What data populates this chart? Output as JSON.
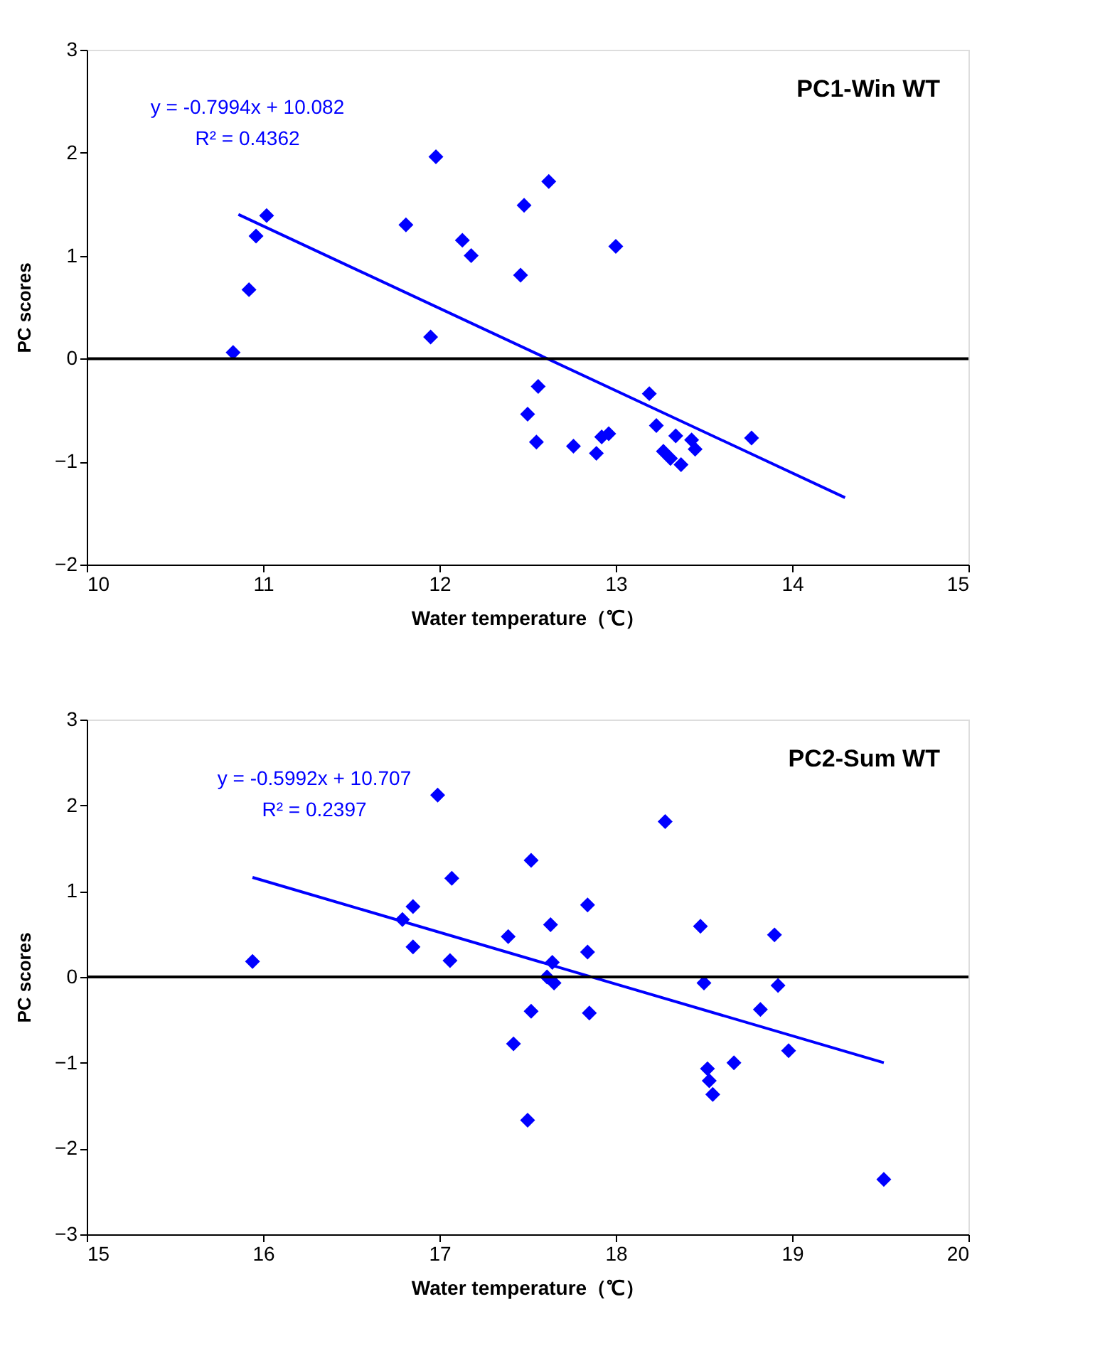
{
  "chart_data": [
    {
      "type": "scatter",
      "title": "PC1-Win WT",
      "xlabel": "Water temperature（℃）",
      "ylabel": "PC scores",
      "xlim": [
        10,
        15
      ],
      "xticks": [
        10,
        11,
        12,
        13,
        14,
        15
      ],
      "ylim": [
        -2,
        3
      ],
      "yticks": [
        -2,
        -1,
        0,
        1,
        2,
        3
      ],
      "grid": false,
      "annotations": [
        "y = -0.7994x + 10.082",
        "R² = 0.4362"
      ],
      "ref_lines": [
        {
          "axis": "y",
          "value": 0,
          "color": "#000000"
        }
      ],
      "series": [
        {
          "color": "#0000ff",
          "marker": "diamond",
          "x": [
            10.83,
            10.92,
            10.96,
            11.02,
            11.81,
            11.98,
            11.95,
            12.13,
            12.18,
            12.46,
            12.48,
            12.62,
            13.0,
            12.56,
            12.5,
            12.55,
            12.76,
            12.89,
            12.92,
            12.96,
            13.19,
            13.23,
            13.27,
            13.31,
            13.34,
            13.37,
            13.43,
            13.45,
            13.77
          ],
          "values": [
            0.06,
            0.67,
            1.19,
            1.39,
            1.3,
            1.96,
            0.21,
            1.15,
            1.0,
            0.81,
            1.49,
            1.72,
            1.09,
            -0.27,
            -0.54,
            -0.81,
            -0.85,
            -0.92,
            -0.76,
            -0.73,
            -0.34,
            -0.65,
            -0.9,
            -0.97,
            -0.75,
            -1.03,
            -0.79,
            -0.88,
            -0.77
          ]
        },
        {
          "type": "line",
          "color": "#0000ff",
          "marker": "none",
          "line_style": "solid",
          "x": [
            10.86,
            14.3
          ],
          "values": [
            1.4,
            -1.35
          ]
        }
      ]
    },
    {
      "type": "scatter",
      "title": "PC2-Sum WT",
      "xlabel": "Water temperature（℃）",
      "ylabel": "PC scores",
      "xlim": [
        15,
        20
      ],
      "xticks": [
        15,
        16,
        17,
        18,
        19,
        20
      ],
      "ylim": [
        -3,
        3
      ],
      "yticks": [
        -3,
        -2,
        -1,
        0,
        1,
        2,
        3
      ],
      "grid": false,
      "annotations": [
        "y = -0.5992x + 10.707",
        "R² = 0.2397"
      ],
      "ref_lines": [
        {
          "axis": "y",
          "value": 0,
          "color": "#000000"
        }
      ],
      "series": [
        {
          "color": "#0000ff",
          "marker": "diamond",
          "x": [
            15.94,
            16.79,
            16.85,
            16.85,
            16.99,
            17.07,
            17.06,
            17.39,
            17.42,
            17.52,
            17.52,
            17.5,
            17.63,
            17.64,
            17.61,
            17.65,
            17.84,
            17.84,
            17.85,
            18.28,
            18.48,
            18.5,
            18.52,
            18.53,
            18.55,
            18.67,
            18.82,
            18.9,
            18.92,
            18.98,
            19.52
          ],
          "values": [
            0.18,
            0.67,
            0.82,
            0.35,
            2.12,
            1.15,
            0.19,
            0.47,
            -0.78,
            1.36,
            -0.4,
            -1.67,
            0.61,
            0.17,
            0.0,
            -0.07,
            0.84,
            0.29,
            -0.42,
            1.81,
            0.59,
            -0.07,
            -1.07,
            -1.21,
            -1.37,
            -1.0,
            -0.38,
            0.49,
            -0.1,
            -0.86,
            -2.36
          ]
        },
        {
          "type": "line",
          "color": "#0000ff",
          "marker": "none",
          "line_style": "solid",
          "x": [
            15.94,
            19.52
          ],
          "values": [
            1.16,
            -1.0
          ]
        }
      ]
    }
  ]
}
